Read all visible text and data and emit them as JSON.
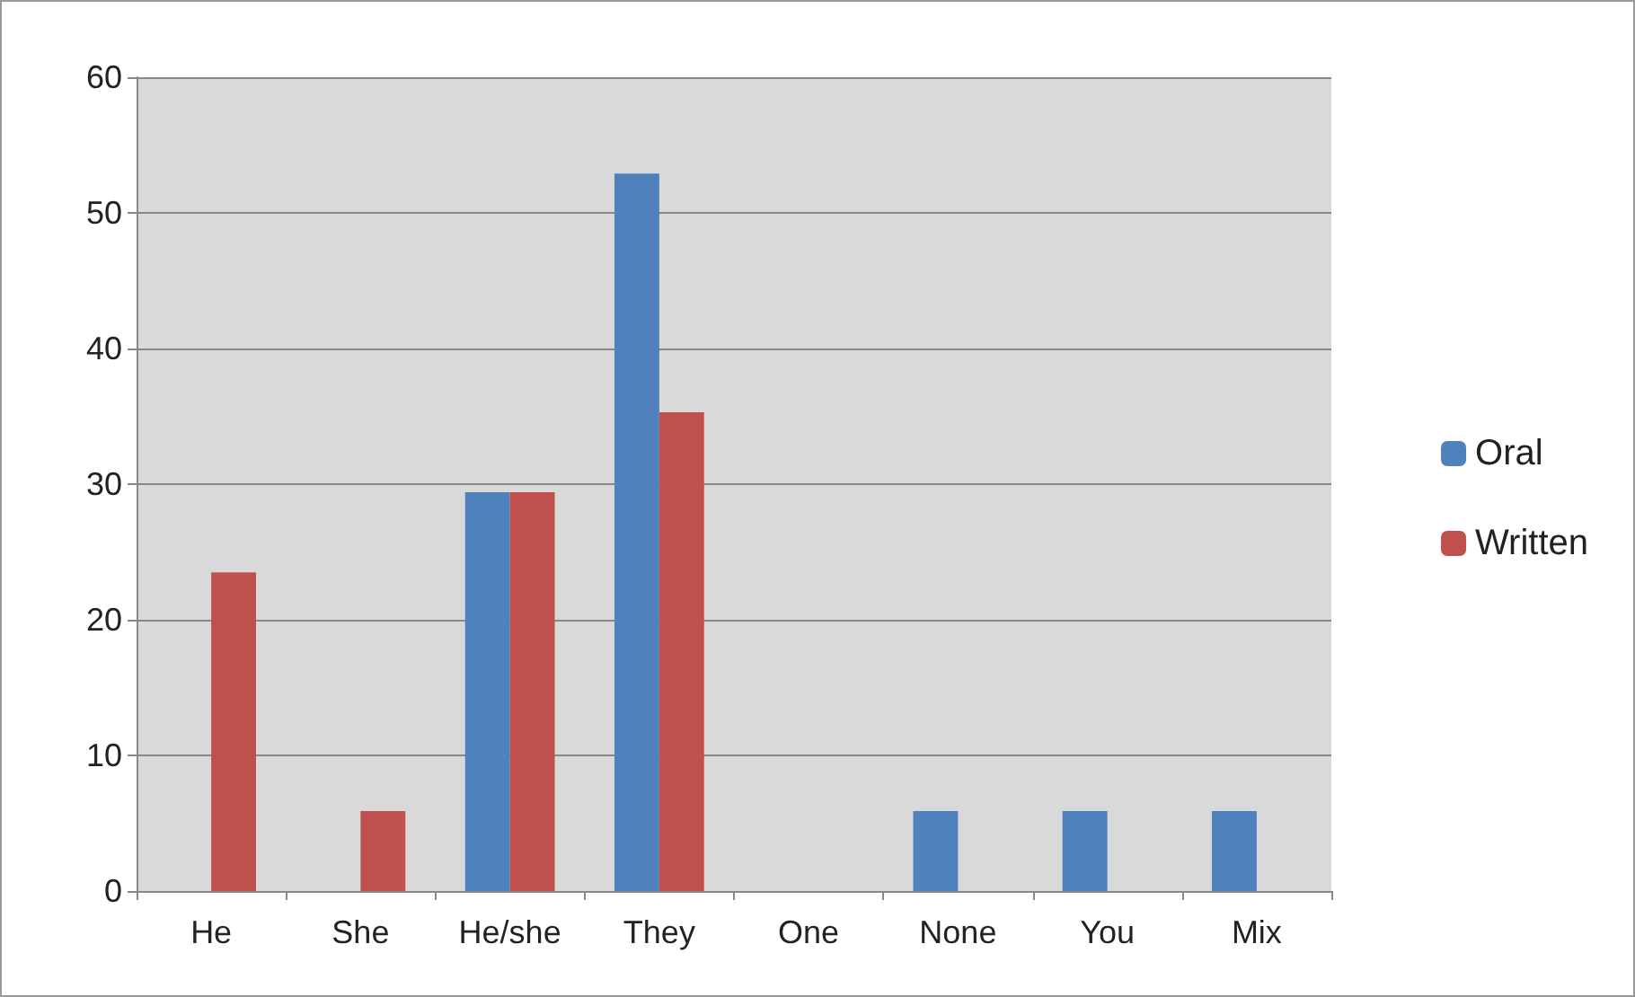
{
  "chart_data": {
    "type": "bar",
    "categories": [
      "He",
      "She",
      "He/she",
      "They",
      "One",
      "None",
      "You",
      "Mix"
    ],
    "series": [
      {
        "name": "Oral",
        "color": "#4f81bd",
        "values": [
          0,
          0,
          29.4,
          52.9,
          0,
          5.9,
          5.9,
          5.9
        ]
      },
      {
        "name": "Written",
        "color": "#c0504d",
        "values": [
          23.5,
          5.9,
          29.4,
          35.3,
          0,
          0,
          0,
          0
        ]
      }
    ],
    "ylim": [
      0,
      60
    ],
    "yticks": [
      0,
      10,
      20,
      30,
      40,
      50,
      60
    ],
    "grid": "y",
    "legend": "right"
  }
}
